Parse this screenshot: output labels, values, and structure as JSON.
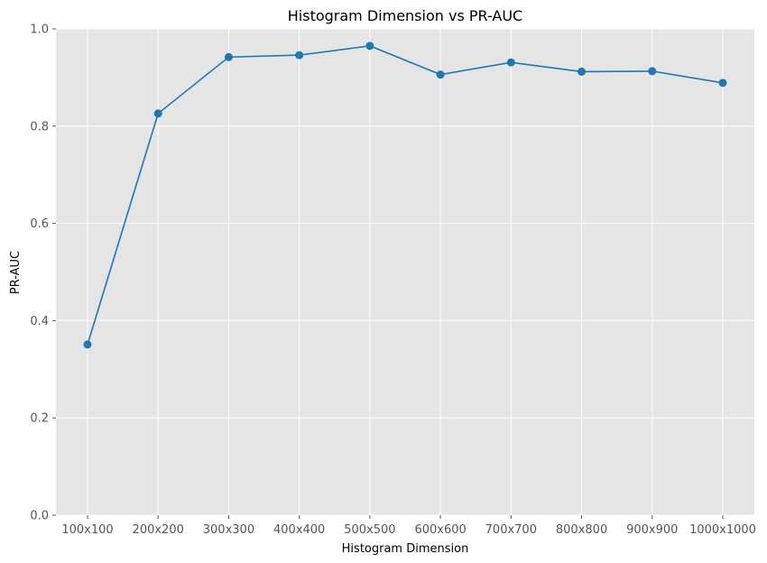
{
  "chart_data": {
    "type": "line",
    "title": "Histogram Dimension vs PR-AUC",
    "xlabel": "Histogram Dimension",
    "ylabel": "PR-AUC",
    "categories": [
      "100x100",
      "200x200",
      "300x300",
      "400x400",
      "500x500",
      "600x600",
      "700x700",
      "800x800",
      "900x900",
      "1000x1000"
    ],
    "values": [
      0.351,
      0.826,
      0.942,
      0.946,
      0.965,
      0.906,
      0.931,
      0.912,
      0.913,
      0.889
    ],
    "ylim": [
      0,
      1.0
    ],
    "yticks": [
      "0.0",
      "0.2",
      "0.4",
      "0.6",
      "0.8",
      "1.0"
    ],
    "grid": true,
    "line_color": "#1f77b4",
    "plot_background": "#e5e5e5",
    "grid_color": "#ffffff"
  }
}
